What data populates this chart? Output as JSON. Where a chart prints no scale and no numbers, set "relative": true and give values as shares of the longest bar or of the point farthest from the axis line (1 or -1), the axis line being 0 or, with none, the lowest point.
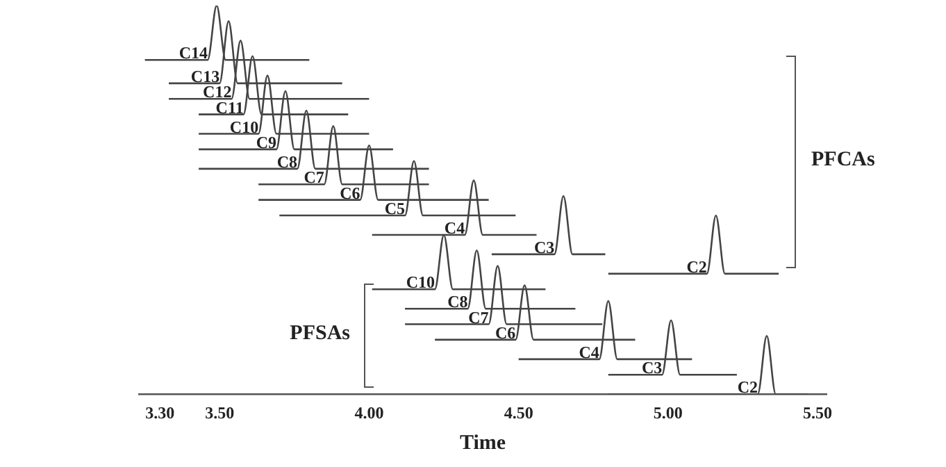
{
  "chart_data": {
    "type": "line",
    "relative": true,
    "xlabel": "Time",
    "xlim": [
      3.23,
      5.53
    ],
    "xticks": [
      {
        "value": 3.3,
        "label": "3.30"
      },
      {
        "value": 3.5,
        "label": "3.50"
      },
      {
        "value": 4.0,
        "label": "4.00"
      },
      {
        "value": 4.5,
        "label": "4.50"
      },
      {
        "value": 5.0,
        "label": "5.00"
      },
      {
        "value": 5.5,
        "label": "5.50"
      }
    ],
    "annotations": [
      "PFCAs",
      "PFSAs"
    ],
    "series": [
      {
        "name": "C14",
        "color": "#444444",
        "x": [
          3.25,
          3.46,
          3.49,
          3.52,
          3.8
        ],
        "values": [
          0.86,
          0.86,
          1.0,
          0.86,
          0.86
        ]
      },
      {
        "name": "C13",
        "color": "#444444",
        "x": [
          3.33,
          3.5,
          3.53,
          3.56,
          3.91
        ],
        "values": [
          0.8,
          0.8,
          0.96,
          0.8,
          0.8
        ]
      },
      {
        "name": "C12",
        "color": "#444444",
        "x": [
          3.33,
          3.54,
          3.57,
          3.6,
          4.0
        ],
        "values": [
          0.76,
          0.76,
          0.91,
          0.76,
          0.76
        ]
      },
      {
        "name": "C11",
        "color": "#444444",
        "x": [
          3.43,
          3.58,
          3.61,
          3.64,
          3.93
        ],
        "values": [
          0.72,
          0.72,
          0.87,
          0.72,
          0.72
        ]
      },
      {
        "name": "C10",
        "color": "#444444",
        "x": [
          3.43,
          3.63,
          3.66,
          3.69,
          4.0
        ],
        "values": [
          0.67,
          0.67,
          0.82,
          0.67,
          0.67
        ]
      },
      {
        "name": "C9",
        "color": "#444444",
        "x": [
          3.43,
          3.69,
          3.72,
          3.75,
          4.08
        ],
        "values": [
          0.63,
          0.63,
          0.78,
          0.63,
          0.63
        ]
      },
      {
        "name": "C8",
        "color": "#444444",
        "x": [
          3.43,
          3.76,
          3.79,
          3.82,
          4.2
        ],
        "values": [
          0.58,
          0.58,
          0.73,
          0.58,
          0.58
        ]
      },
      {
        "name": "C7",
        "color": "#444444",
        "x": [
          3.63,
          3.85,
          3.88,
          3.91,
          4.2
        ],
        "values": [
          0.54,
          0.54,
          0.69,
          0.54,
          0.54
        ]
      },
      {
        "name": "C6",
        "color": "#444444",
        "x": [
          3.63,
          3.97,
          4.0,
          4.03,
          4.4
        ],
        "values": [
          0.5,
          0.5,
          0.64,
          0.5,
          0.5
        ]
      },
      {
        "name": "C5",
        "color": "#444444",
        "x": [
          3.7,
          4.12,
          4.15,
          4.18,
          4.49
        ],
        "values": [
          0.46,
          0.46,
          0.6,
          0.46,
          0.46
        ]
      },
      {
        "name": "C4",
        "color": "#444444",
        "x": [
          4.01,
          4.32,
          4.35,
          4.38,
          4.56
        ],
        "values": [
          0.41,
          0.41,
          0.55,
          0.41,
          0.41
        ]
      },
      {
        "name": "C3",
        "color": "#444444",
        "x": [
          4.41,
          4.62,
          4.65,
          4.68,
          4.79
        ],
        "values": [
          0.36,
          0.36,
          0.51,
          0.36,
          0.36
        ]
      },
      {
        "name": "C2",
        "color": "#444444",
        "x": [
          4.8,
          5.13,
          5.16,
          5.19,
          5.37
        ],
        "values": [
          0.31,
          0.31,
          0.46,
          0.31,
          0.31
        ]
      },
      {
        "name": "C10",
        "color": "#444444",
        "x": [
          4.01,
          4.22,
          4.25,
          4.28,
          4.59
        ],
        "values": [
          0.27,
          0.27,
          0.41,
          0.27,
          0.27
        ]
      },
      {
        "name": "C8",
        "color": "#444444",
        "x": [
          4.12,
          4.33,
          4.36,
          4.39,
          4.69
        ],
        "values": [
          0.22,
          0.22,
          0.37,
          0.22,
          0.22
        ]
      },
      {
        "name": "C7",
        "color": "#444444",
        "x": [
          4.12,
          4.4,
          4.43,
          4.46,
          4.78
        ],
        "values": [
          0.18,
          0.18,
          0.33,
          0.18,
          0.18
        ]
      },
      {
        "name": "C6",
        "color": "#444444",
        "x": [
          4.22,
          4.49,
          4.52,
          4.55,
          4.89
        ],
        "values": [
          0.14,
          0.14,
          0.28,
          0.14,
          0.14
        ]
      },
      {
        "name": "C4",
        "color": "#444444",
        "x": [
          4.5,
          4.77,
          4.8,
          4.83,
          5.08
        ],
        "values": [
          0.09,
          0.09,
          0.24,
          0.09,
          0.09
        ]
      },
      {
        "name": "C3",
        "color": "#444444",
        "x": [
          4.8,
          4.98,
          5.01,
          5.04,
          5.23
        ],
        "values": [
          0.05,
          0.05,
          0.19,
          0.05,
          0.05
        ]
      },
      {
        "name": "C2",
        "color": "#444444",
        "x": [
          4.8,
          5.3,
          5.33,
          5.36,
          5.47
        ],
        "values": [
          0.0,
          0.0,
          0.15,
          0.0,
          0.0
        ]
      }
    ]
  }
}
